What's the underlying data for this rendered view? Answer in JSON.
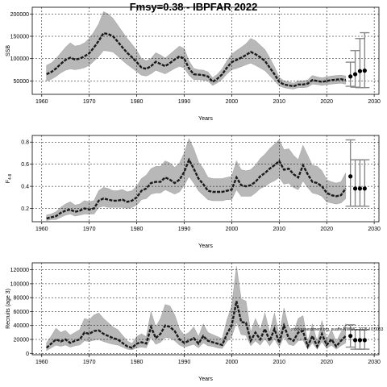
{
  "figure": {
    "title": "Fmsy=0.38 - IBPFAR 2022"
  },
  "chart_data": [
    {
      "type": "area",
      "title": "",
      "xlabel": "Years",
      "ylabel": "SSB",
      "xlim": [
        1958,
        2031
      ],
      "ylim": [
        20000,
        215000
      ],
      "xticks": [
        1960,
        1970,
        1980,
        1990,
        2000,
        2010,
        2020,
        2030
      ],
      "yticks": [
        50000,
        100000,
        150000,
        200000
      ],
      "grid": true,
      "x": [
        1961,
        1962,
        1963,
        1964,
        1965,
        1966,
        1967,
        1968,
        1969,
        1970,
        1971,
        1972,
        1973,
        1974,
        1975,
        1976,
        1977,
        1978,
        1979,
        1980,
        1981,
        1982,
        1983,
        1984,
        1985,
        1986,
        1987,
        1988,
        1989,
        1990,
        1991,
        1992,
        1993,
        1994,
        1995,
        1996,
        1997,
        1998,
        1999,
        2000,
        2001,
        2002,
        2003,
        2004,
        2005,
        2006,
        2007,
        2008,
        2009,
        2010,
        2011,
        2012,
        2013,
        2014,
        2015,
        2016,
        2017,
        2018,
        2019,
        2020,
        2021,
        2022,
        2023,
        2024
      ],
      "series": [
        {
          "role": "estimate",
          "values": [
            65000,
            70000,
            78000,
            88000,
            97000,
            102000,
            98000,
            100000,
            105000,
            112000,
            125000,
            140000,
            157000,
            155000,
            150000,
            138000,
            125000,
            113000,
            103000,
            92000,
            80000,
            77000,
            83000,
            93000,
            88000,
            83000,
            90000,
            98000,
            105000,
            100000,
            78000,
            65000,
            64000,
            63000,
            60000,
            48000,
            55000,
            65000,
            80000,
            92000,
            97000,
            102000,
            108000,
            115000,
            110000,
            103000,
            95000,
            80000,
            65000,
            48000,
            42000,
            40000,
            38000,
            42000,
            42000,
            44000,
            52000,
            50000,
            48000,
            50000,
            52000,
            53000,
            54000,
            52000
          ]
        },
        {
          "role": "upper",
          "values": [
            85000,
            90000,
            100000,
            112000,
            125000,
            135000,
            128000,
            130000,
            135000,
            145000,
            160000,
            178000,
            205000,
            200000,
            190000,
            175000,
            160000,
            145000,
            132000,
            118000,
            100000,
            95000,
            100000,
            113000,
            108000,
            101000,
            110000,
            119000,
            128000,
            122000,
            95000,
            78000,
            75000,
            74000,
            70000,
            57000,
            65000,
            77000,
            95000,
            110000,
            118000,
            125000,
            133000,
            145000,
            140000,
            130000,
            120000,
            102000,
            82000,
            58000,
            50000,
            48000,
            45000,
            50000,
            50000,
            52000,
            62000,
            59000,
            57000,
            59000,
            61000,
            62000,
            63000,
            61000
          ]
        },
        {
          "role": "lower",
          "values": [
            50000,
            54000,
            60000,
            68000,
            74000,
            77000,
            75000,
            77000,
            80000,
            85000,
            95000,
            105000,
            118000,
            117000,
            115000,
            106000,
            96000,
            87000,
            79000,
            71000,
            63000,
            61000,
            66000,
            74000,
            70000,
            66000,
            72000,
            78000,
            83000,
            79000,
            63000,
            53000,
            53000,
            52000,
            50000,
            40000,
            46000,
            54000,
            66000,
            75000,
            78000,
            82000,
            86000,
            90000,
            85000,
            79000,
            73000,
            62000,
            51000,
            39000,
            35000,
            33000,
            32000,
            35000,
            35000,
            36000,
            43000,
            42000,
            40000,
            42000,
            43000,
            44000,
            45000,
            43000
          ]
        }
      ],
      "forecast": {
        "x": [
          2025,
          2026,
          2027,
          2028
        ],
        "values": [
          60000,
          65000,
          72000,
          73000
        ],
        "upper": [
          92000,
          118000,
          145000,
          158000
        ],
        "lower": [
          38000,
          36000,
          35000,
          35000
        ]
      }
    },
    {
      "type": "area",
      "title": "",
      "xlabel": "Years",
      "ylabel": "F",
      "ylabel_sub": "4-8",
      "xlim": [
        1958,
        2031
      ],
      "ylim": [
        0.08,
        0.86
      ],
      "xticks": [
        1960,
        1970,
        1980,
        1990,
        2000,
        2010,
        2020,
        2030
      ],
      "yticks": [
        0.2,
        0.4,
        0.6,
        0.8
      ],
      "grid": true,
      "x": [
        1961,
        1962,
        1963,
        1964,
        1965,
        1966,
        1967,
        1968,
        1969,
        1970,
        1971,
        1972,
        1973,
        1974,
        1975,
        1976,
        1977,
        1978,
        1979,
        1980,
        1981,
        1982,
        1983,
        1984,
        1985,
        1986,
        1987,
        1988,
        1989,
        1990,
        1991,
        1992,
        1993,
        1994,
        1995,
        1996,
        1997,
        1998,
        1999,
        2000,
        2001,
        2002,
        2003,
        2004,
        2005,
        2006,
        2007,
        2008,
        2009,
        2010,
        2011,
        2012,
        2013,
        2014,
        2015,
        2016,
        2017,
        2018,
        2019,
        2020,
        2021,
        2022,
        2023,
        2024
      ],
      "series": [
        {
          "role": "estimate",
          "values": [
            0.11,
            0.12,
            0.13,
            0.16,
            0.18,
            0.19,
            0.17,
            0.18,
            0.2,
            0.19,
            0.2,
            0.27,
            0.29,
            0.28,
            0.27,
            0.27,
            0.28,
            0.26,
            0.27,
            0.3,
            0.36,
            0.38,
            0.43,
            0.44,
            0.44,
            0.48,
            0.46,
            0.43,
            0.46,
            0.53,
            0.64,
            0.56,
            0.47,
            0.42,
            0.36,
            0.35,
            0.35,
            0.35,
            0.36,
            0.37,
            0.48,
            0.41,
            0.4,
            0.41,
            0.44,
            0.49,
            0.52,
            0.56,
            0.59,
            0.63,
            0.55,
            0.56,
            0.51,
            0.48,
            0.59,
            0.51,
            0.44,
            0.43,
            0.4,
            0.34,
            0.32,
            0.31,
            0.32,
            0.38
          ]
        },
        {
          "role": "upper",
          "values": [
            0.14,
            0.15,
            0.17,
            0.21,
            0.24,
            0.26,
            0.23,
            0.24,
            0.27,
            0.26,
            0.27,
            0.36,
            0.39,
            0.38,
            0.36,
            0.36,
            0.37,
            0.35,
            0.36,
            0.4,
            0.47,
            0.5,
            0.56,
            0.58,
            0.58,
            0.63,
            0.61,
            0.57,
            0.61,
            0.7,
            0.83,
            0.74,
            0.62,
            0.56,
            0.48,
            0.47,
            0.47,
            0.47,
            0.48,
            0.49,
            0.63,
            0.55,
            0.54,
            0.55,
            0.59,
            0.65,
            0.69,
            0.74,
            0.78,
            0.82,
            0.73,
            0.74,
            0.68,
            0.64,
            0.77,
            0.68,
            0.59,
            0.58,
            0.54,
            0.46,
            0.44,
            0.43,
            0.44,
            0.52
          ]
        },
        {
          "role": "lower",
          "values": [
            0.09,
            0.1,
            0.1,
            0.12,
            0.14,
            0.15,
            0.13,
            0.14,
            0.15,
            0.15,
            0.15,
            0.21,
            0.22,
            0.21,
            0.21,
            0.21,
            0.21,
            0.2,
            0.21,
            0.23,
            0.28,
            0.29,
            0.33,
            0.34,
            0.34,
            0.37,
            0.35,
            0.33,
            0.35,
            0.41,
            0.49,
            0.43,
            0.36,
            0.32,
            0.28,
            0.27,
            0.27,
            0.27,
            0.28,
            0.28,
            0.37,
            0.31,
            0.31,
            0.31,
            0.34,
            0.38,
            0.4,
            0.43,
            0.45,
            0.48,
            0.42,
            0.43,
            0.39,
            0.37,
            0.45,
            0.39,
            0.34,
            0.33,
            0.31,
            0.26,
            0.25,
            0.24,
            0.25,
            0.29
          ]
        }
      ],
      "forecast": {
        "x": [
          2025,
          2026,
          2027,
          2028
        ],
        "values": [
          0.49,
          0.38,
          0.38,
          0.38
        ],
        "upper": [
          0.82,
          0.64,
          0.64,
          0.64
        ],
        "lower": [
          0.22,
          0.22,
          0.22,
          0.22
        ]
      }
    },
    {
      "type": "area",
      "title": "",
      "xlabel": "Years",
      "ylabel": "Recruits (age 3)",
      "xlim": [
        1958,
        2031
      ],
      "ylim": [
        -2000,
        130000
      ],
      "xticks": [
        1960,
        1970,
        1980,
        1990,
        2000,
        2010,
        2020,
        2030
      ],
      "yticks": [
        0,
        20000,
        40000,
        60000,
        80000,
        100000,
        120000
      ],
      "grid": true,
      "annotation": "stockassessment.org, suaffe-NWWG-2025-f 0.0053",
      "x": [
        1961,
        1962,
        1963,
        1964,
        1965,
        1966,
        1967,
        1968,
        1969,
        1970,
        1971,
        1972,
        1973,
        1974,
        1975,
        1976,
        1977,
        1978,
        1979,
        1980,
        1981,
        1982,
        1983,
        1984,
        1985,
        1986,
        1987,
        1988,
        1989,
        1990,
        1991,
        1992,
        1993,
        1994,
        1995,
        1996,
        1997,
        1998,
        1999,
        2000,
        2001,
        2002,
        2003,
        2004,
        2005,
        2006,
        2007,
        2008,
        2009,
        2010,
        2011,
        2012,
        2013,
        2014,
        2015,
        2016,
        2017,
        2018,
        2019,
        2020,
        2021,
        2022,
        2023,
        2024
      ],
      "series": [
        {
          "role": "estimate",
          "values": [
            8000,
            14000,
            20000,
            17000,
            20000,
            15000,
            18000,
            20000,
            30000,
            28000,
            32000,
            33000,
            28000,
            25000,
            22000,
            20000,
            15000,
            10000,
            8000,
            14000,
            16000,
            14000,
            38000,
            22000,
            28000,
            40000,
            38000,
            32000,
            20000,
            15000,
            18000,
            22000,
            14000,
            25000,
            18000,
            16000,
            14000,
            12000,
            28000,
            40000,
            75000,
            45000,
            44000,
            18000,
            30000,
            20000,
            35000,
            18000,
            35000,
            15000,
            40000,
            22000,
            18000,
            30000,
            32000,
            10000,
            25000,
            10000,
            28000,
            12000,
            20000,
            10000,
            18000,
            25000
          ]
        },
        {
          "role": "upper",
          "values": [
            15000,
            25000,
            36000,
            30000,
            33000,
            26000,
            30000,
            34000,
            50000,
            48000,
            55000,
            58000,
            50000,
            44000,
            38000,
            34000,
            26000,
            18000,
            14000,
            24000,
            28000,
            24000,
            60000,
            38000,
            50000,
            70000,
            68000,
            55000,
            35000,
            26000,
            30000,
            38000,
            24000,
            42000,
            30000,
            27000,
            24000,
            21000,
            48000,
            68000,
            125000,
            78000,
            75000,
            30000,
            50000,
            34000,
            58000,
            30000,
            58000,
            26000,
            65000,
            38000,
            30000,
            50000,
            54000,
            17000,
            42000,
            17000,
            47000,
            20000,
            34000,
            17000,
            30000,
            42000
          ]
        },
        {
          "role": "lower",
          "values": [
            4000,
            8000,
            12000,
            10000,
            12000,
            9000,
            11000,
            12000,
            18000,
            17000,
            19000,
            20000,
            17000,
            15000,
            13000,
            12000,
            9000,
            6000,
            5000,
            8000,
            9000,
            8000,
            23000,
            13000,
            16000,
            23000,
            22000,
            18000,
            12000,
            9000,
            11000,
            13000,
            8000,
            15000,
            11000,
            10000,
            8000,
            7000,
            17000,
            24000,
            45000,
            27000,
            26000,
            11000,
            18000,
            12000,
            21000,
            11000,
            21000,
            9000,
            24000,
            13000,
            11000,
            18000,
            19000,
            6000,
            15000,
            6000,
            17000,
            7000,
            12000,
            6000,
            11000,
            15000
          ]
        }
      ],
      "forecast": {
        "x": [
          2025,
          2026,
          2027,
          2028
        ],
        "values": [
          25000,
          19000,
          19000,
          19000
        ],
        "upper": [
          41000,
          34000,
          34000,
          34000
        ],
        "lower": [
          9000,
          6000,
          6000,
          6000
        ]
      }
    }
  ]
}
